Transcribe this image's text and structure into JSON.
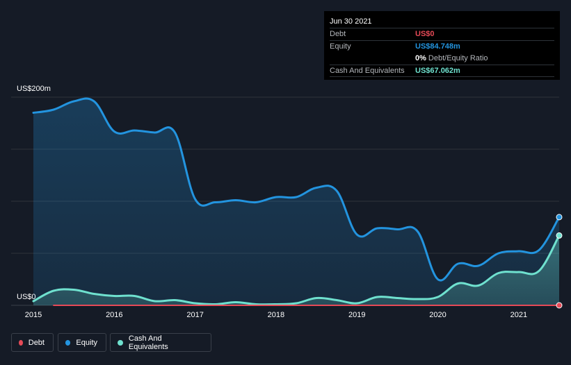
{
  "tooltip": {
    "date": "Jun 30 2021",
    "debt_label": "Debt",
    "debt_value": "US$0",
    "equity_label": "Equity",
    "equity_value": "US$84.748m",
    "ratio_value": "0%",
    "ratio_label": "Debt/Equity Ratio",
    "cash_label": "Cash And Equivalents",
    "cash_value": "US$67.062m"
  },
  "legend": {
    "debt": "Debt",
    "equity": "Equity",
    "cash": "Cash And Equivalents"
  },
  "colors": {
    "debt": "#e64a57",
    "equity": "#2394df",
    "cash": "#6fe1cf",
    "background": "#151b26",
    "grid": "#2e333a"
  },
  "chart_data": {
    "type": "area",
    "title": "",
    "xlabel": "",
    "ylabel": "",
    "ylim": [
      0,
      200
    ],
    "xlim": [
      2015.0,
      2021.5
    ],
    "y_unit": "US$m",
    "y_ticks": [
      {
        "value": 0,
        "label": "US$0"
      },
      {
        "value": 200,
        "label": "US$200m"
      }
    ],
    "x_ticks": [
      {
        "value": 2015,
        "label": "2015"
      },
      {
        "value": 2016,
        "label": "2016"
      },
      {
        "value": 2017,
        "label": "2017"
      },
      {
        "value": 2018,
        "label": "2018"
      },
      {
        "value": 2019,
        "label": "2019"
      },
      {
        "value": 2020,
        "label": "2020"
      },
      {
        "value": 2021,
        "label": "2021"
      }
    ],
    "series": [
      {
        "name": "Equity",
        "key": "equity",
        "x": [
          2015.0,
          2015.25,
          2015.5,
          2015.75,
          2016.0,
          2016.25,
          2016.5,
          2016.75,
          2017.0,
          2017.25,
          2017.5,
          2017.75,
          2018.0,
          2018.25,
          2018.5,
          2018.75,
          2019.0,
          2019.25,
          2019.5,
          2019.75,
          2020.0,
          2020.25,
          2020.5,
          2020.75,
          2021.0,
          2021.25,
          2021.5
        ],
        "values": [
          185,
          188,
          196,
          196,
          167,
          168,
          166,
          166,
          102,
          99,
          101,
          99,
          104,
          104,
          113,
          110,
          68,
          74,
          73,
          71,
          25,
          40,
          38,
          50,
          52,
          53,
          84.748
        ]
      },
      {
        "name": "Cash And Equivalents",
        "key": "cash",
        "x": [
          2015.0,
          2015.25,
          2015.5,
          2015.75,
          2016.0,
          2016.25,
          2016.5,
          2016.75,
          2017.0,
          2017.25,
          2017.5,
          2017.75,
          2018.0,
          2018.25,
          2018.5,
          2018.75,
          2019.0,
          2019.25,
          2019.5,
          2019.75,
          2020.0,
          2020.25,
          2020.5,
          2020.75,
          2021.0,
          2021.25,
          2021.5
        ],
        "values": [
          4,
          14,
          15,
          11,
          9,
          9,
          4,
          5,
          2,
          1,
          3,
          1,
          1,
          2,
          7,
          5,
          2,
          8,
          7,
          6,
          8,
          21,
          19,
          31,
          32,
          33,
          67.062
        ]
      },
      {
        "name": "Debt",
        "key": "debt",
        "x": [
          2015.25,
          2015.5,
          2015.75,
          2016.0,
          2016.25,
          2016.5,
          2016.75,
          2017.0,
          2017.25,
          2017.5,
          2017.75,
          2018.0,
          2018.25,
          2018.5,
          2018.75,
          2019.0,
          2019.25,
          2019.5,
          2019.75,
          2020.0,
          2020.25,
          2020.5,
          2020.75,
          2021.0,
          2021.25,
          2021.5
        ],
        "values": [
          0,
          0,
          0,
          0,
          0,
          0,
          0,
          0,
          0,
          0,
          0,
          0,
          0,
          0,
          0,
          0,
          0,
          0,
          0,
          0,
          0,
          0,
          0,
          0,
          0,
          0
        ]
      }
    ]
  }
}
